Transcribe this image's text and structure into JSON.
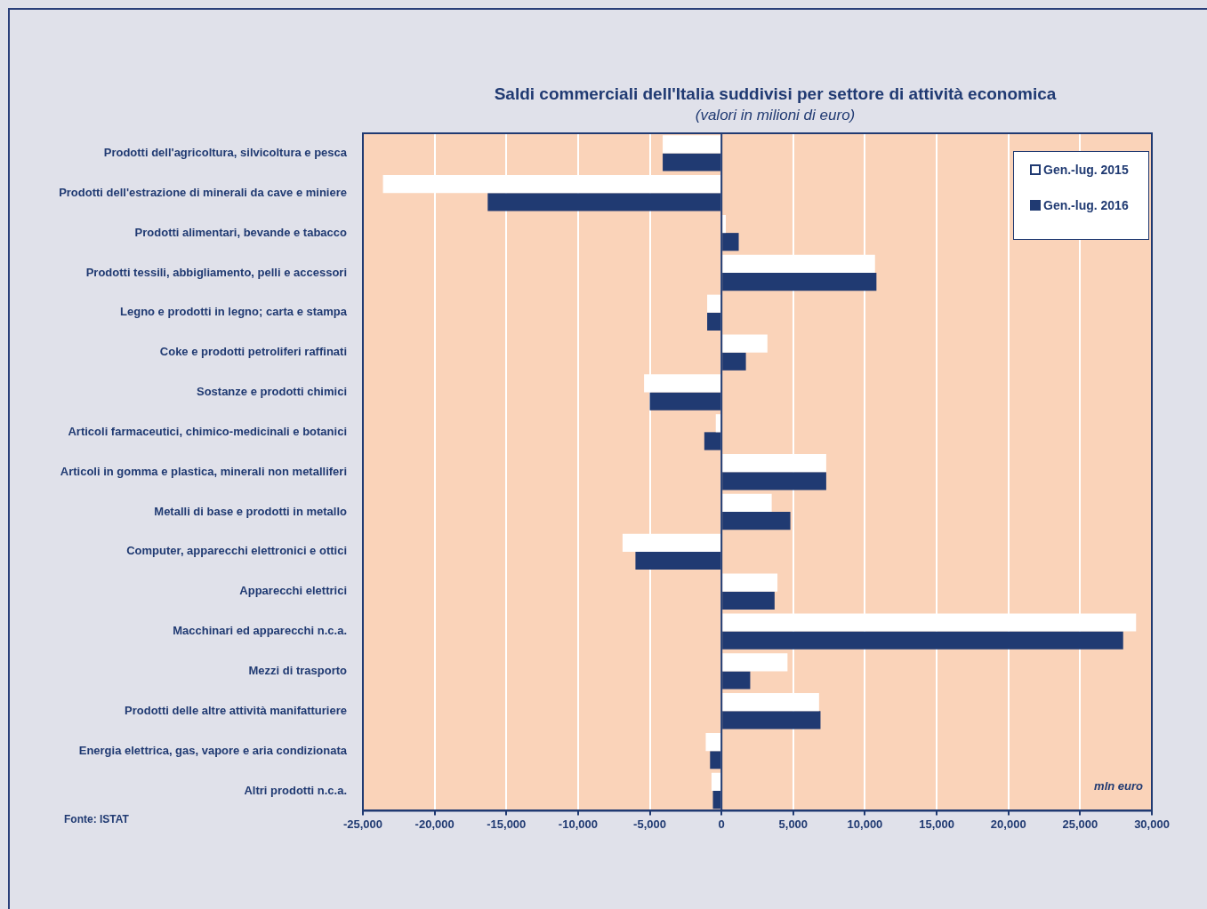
{
  "chart_data": {
    "type": "bar",
    "orientation": "horizontal",
    "title": "Saldi commerciali dell'Italia suddivisi per settore di attività economica",
    "subtitle": "(valori in milioni di euro)",
    "categories": [
      "Prodotti dell'agricoltura, silvicoltura e pesca",
      "Prodotti dell'estrazione di minerali da cave e miniere",
      "Prodotti alimentari, bevande e tabacco",
      "Prodotti tessili, abbigliamento, pelli e accessori",
      "Legno e prodotti in legno; carta e stampa",
      "Coke e prodotti petroliferi raffinati",
      "Sostanze e prodotti chimici",
      "Articoli farmaceutici, chimico-medicinali e botanici",
      "Articoli in gomma e plastica, minerali non metalliferi",
      "Metalli di base e prodotti in metallo",
      "Computer, apparecchi elettronici e ottici",
      "Apparecchi elettrici",
      "Macchinari ed apparecchi n.c.a.",
      "Mezzi di trasporto",
      "Prodotti delle altre attività manifatturiere",
      "Energia elettrica, gas, vapore e aria condizionata",
      "Altri prodotti n.c.a."
    ],
    "series": [
      {
        "name": "Gen.-lug. 2015",
        "color": "#ffffff",
        "values": [
          -4100,
          -23600,
          300,
          10700,
          -1000,
          3200,
          -5400,
          -400,
          7300,
          3500,
          -6900,
          3900,
          28900,
          4600,
          6800,
          -1100,
          -700
        ]
      },
      {
        "name": "Gen.-lug. 2016",
        "color": "#203a72",
        "values": [
          -4100,
          -16300,
          1200,
          10800,
          -1000,
          1700,
          -5000,
          -1200,
          7300,
          4800,
          -6000,
          3700,
          28000,
          2000,
          6900,
          -800,
          -600
        ]
      }
    ],
    "xlim": [
      -25000,
      30000
    ],
    "xticks": [
      {
        "value": -25000,
        "label": "-25,000"
      },
      {
        "value": -20000,
        "label": "-20,000"
      },
      {
        "value": -15000,
        "label": "-15,000"
      },
      {
        "value": -10000,
        "label": "-10,000"
      },
      {
        "value": -5000,
        "label": "-5,000"
      },
      {
        "value": 0,
        "label": "0"
      },
      {
        "value": 5000,
        "label": "5,000"
      },
      {
        "value": 10000,
        "label": "10,000"
      },
      {
        "value": 15000,
        "label": "15,000"
      },
      {
        "value": 20000,
        "label": "20,000"
      },
      {
        "value": 25000,
        "label": "25,000"
      },
      {
        "value": 30000,
        "label": "30,000"
      }
    ],
    "grid": "x",
    "legend": "top right",
    "ref_lines": [
      {
        "axis": "x",
        "value": 0,
        "color": "#203a72"
      }
    ],
    "annotations": [
      "mln euro",
      "Fonte: ISTAT"
    ]
  }
}
